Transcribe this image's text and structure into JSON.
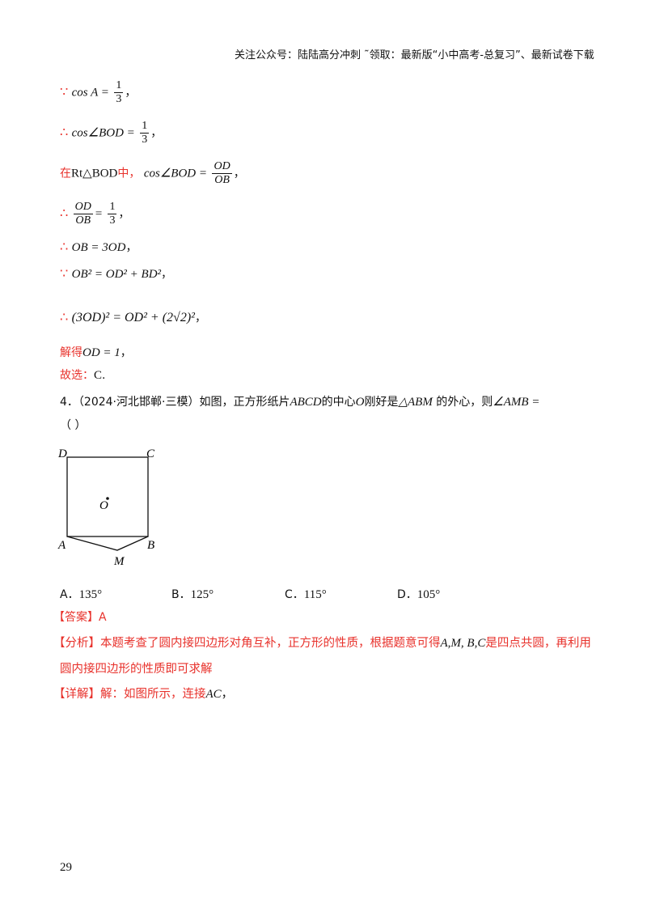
{
  "header": "关注公众号：陆陆高分冲刺  ˜领取：最新版“小中高考-总复习”、最新试卷下载",
  "because": "∵",
  "therefore": "∴",
  "lines": {
    "l1_expr": "cos A =",
    "l1_num": "1",
    "l1_den": "3",
    "comma": "，",
    "l2_expr": "cos∠BOD =",
    "l3_pre": "在",
    "l3_tri": "Rt△BOD",
    "l3_mid": "中，",
    "l3_expr": "cos∠BOD =",
    "l3_num": "OD",
    "l3_den": "OB",
    "l4_num": "OD",
    "l4_den": "OB",
    "l4_eq": "=",
    "l5": "OB = 3OD",
    "l6": "OB² = OD² + BD²",
    "l7": "(3OD)² = OD² + (2√2)²",
    "l8_pre": "解得",
    "l8_expr": "OD = 1",
    "l9_pre": "故选：",
    "l9_val": "C",
    "period": "."
  },
  "question": {
    "number": "4．",
    "source": "（2024·河北邯郸·三模）",
    "t1": "如图，正方形纸片",
    "abcd": "ABCD",
    "t2": "的中心",
    "o": "O",
    "t3": "刚好是",
    "tri": "△ABM",
    "t4": "的外心，则",
    "angle": "∠AMB =",
    "blank": "（                    ）",
    "labels": {
      "A": "A",
      "B": "B",
      "C": "C",
      "D": "D",
      "O": "O",
      "M": "M"
    },
    "options": [
      {
        "key": "A．",
        "val": "135°"
      },
      {
        "key": "B．",
        "val": "125°"
      },
      {
        "key": "C．",
        "val": "115°"
      },
      {
        "key": "D．",
        "val": "105°"
      }
    ]
  },
  "answer": {
    "tag": "【答案】",
    "val": "A"
  },
  "analysis": {
    "tag": "【分析】",
    "t1": "本题考查了圆内接四边形对角互补，正方形的性质，根据题意可得",
    "pts": "A,M, B,C",
    "t2": "是四点共圆，再利用",
    "t3": "圆内接四边形的性质即可求解"
  },
  "detail": {
    "tag": "【详解】",
    "t1": "解：如图所示，连接",
    "ac": "AC",
    "end": "，"
  },
  "page_number": "29"
}
